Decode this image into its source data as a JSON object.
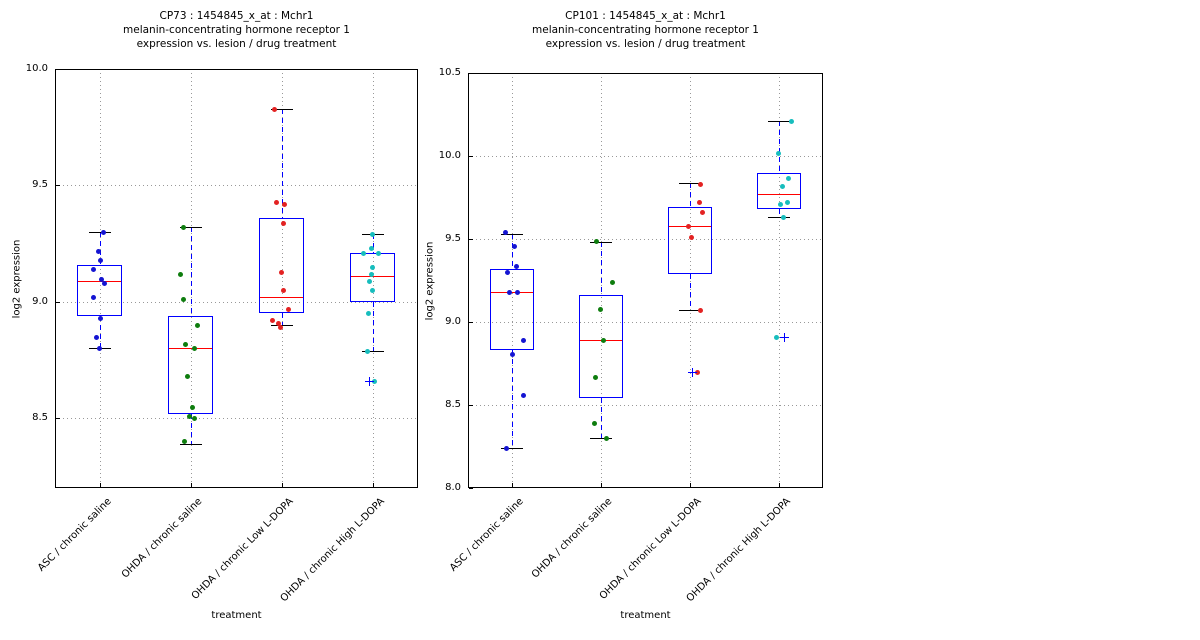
{
  "figure": {
    "background": "#ffffff"
  },
  "palette": {
    "box_edge": "#0000ff",
    "median": "#ff0000",
    "whisker": "#0000ff",
    "cap": "#000000",
    "flier": "#0000ff",
    "grid": "#999999",
    "text": "#000000",
    "axis": "#000000"
  },
  "chart_data": [
    {
      "type": "boxplot-scatter",
      "title_lines": [
        "CP73 : 1454845_x_at : Mchr1",
        "melanin-concentrating hormone receptor 1",
        "expression vs. lesion / drug treatment"
      ],
      "xlabel": "treatment",
      "ylabel": "log2 expression",
      "ylim": [
        8.2,
        10.0
      ],
      "yticks": [
        8.5,
        9.0,
        9.5,
        10.0
      ],
      "ytick_labels": [
        "8.5",
        "9.0",
        "9.5",
        "10.0"
      ],
      "grid": true,
      "categories": [
        "ASC / chronic saline",
        "OHDA / chronic saline",
        "OHDA / chronic Low L-DOPA",
        "OHDA / chronic High L-DOPA"
      ],
      "groups": [
        {
          "name": "ASC / chronic saline",
          "point_color": "#1414d2",
          "box": {
            "whisker_low": 8.8,
            "q1": 8.94,
            "median": 9.09,
            "q3": 9.16,
            "whisker_high": 9.3
          },
          "points": [
            [
              3,
              9.3
            ],
            [
              -2,
              9.22
            ],
            [
              0,
              9.18
            ],
            [
              -7,
              9.14
            ],
            [
              1,
              9.1
            ],
            [
              4,
              9.08
            ],
            [
              -7,
              9.02
            ],
            [
              0,
              8.93
            ],
            [
              -4,
              8.85
            ],
            [
              -1,
              8.8
            ]
          ],
          "fliers": []
        },
        {
          "name": "OHDA / chronic saline",
          "point_color": "#0e7d0e",
          "box": {
            "whisker_low": 8.39,
            "q1": 8.52,
            "median": 8.8,
            "q3": 8.94,
            "whisker_high": 9.32
          },
          "points": [
            [
              -8,
              9.32
            ],
            [
              -11,
              9.12
            ],
            [
              -8,
              9.01
            ],
            [
              6,
              8.9
            ],
            [
              -6,
              8.82
            ],
            [
              3,
              8.8
            ],
            [
              -4,
              8.68
            ],
            [
              1,
              8.55
            ],
            [
              -2,
              8.51
            ],
            [
              3,
              8.5
            ],
            [
              -7,
              8.4
            ]
          ],
          "fliers": []
        },
        {
          "name": "OHDA / chronic Low L-DOPA",
          "point_color": "#e32222",
          "box": {
            "whisker_low": 8.9,
            "q1": 8.95,
            "median": 9.02,
            "q3": 9.36,
            "whisker_high": 9.83
          },
          "points": [
            [
              -8,
              9.83
            ],
            [
              -6,
              9.43
            ],
            [
              2,
              9.42
            ],
            [
              1,
              9.34
            ],
            [
              -1,
              9.13
            ],
            [
              1,
              9.05
            ],
            [
              6,
              8.97
            ],
            [
              -10,
              8.92
            ],
            [
              -4,
              8.91
            ],
            [
              -2,
              8.89
            ]
          ],
          "fliers": []
        },
        {
          "name": "OHDA / chronic High L-DOPA",
          "point_color": "#17bdbd",
          "box": {
            "whisker_low": 8.79,
            "q1": 9.0,
            "median": 9.11,
            "q3": 9.21,
            "whisker_high": 9.29
          },
          "points": [
            [
              -1,
              9.29
            ],
            [
              -2,
              9.23
            ],
            [
              -10,
              9.21
            ],
            [
              5,
              9.21
            ],
            [
              -1,
              9.15
            ],
            [
              -2,
              9.12
            ],
            [
              -4,
              9.09
            ],
            [
              -1,
              9.05
            ],
            [
              -5,
              8.95
            ],
            [
              -6,
              8.79
            ],
            [
              1,
              8.66
            ]
          ],
          "fliers": [
            [
              -4,
              8.66
            ]
          ]
        }
      ]
    },
    {
      "type": "boxplot-scatter",
      "title_lines": [
        "CP101 : 1454845_x_at : Mchr1",
        "melanin-concentrating hormone receptor 1",
        "expression vs. lesion / drug treatment"
      ],
      "xlabel": "treatment",
      "ylabel": "log2 expression",
      "ylim": [
        8.0,
        10.5
      ],
      "yticks": [
        8.0,
        8.5,
        9.0,
        9.5,
        10.0,
        10.5
      ],
      "ytick_labels": [
        "8.0",
        "8.5",
        "9.0",
        "9.5",
        "10.0",
        "10.5"
      ],
      "grid": true,
      "categories": [
        "ASC / chronic saline",
        "OHDA / chronic saline",
        "OHDA / chronic Low L-DOPA",
        "OHDA / chronic High L-DOPA"
      ],
      "groups": [
        {
          "name": "ASC / chronic saline",
          "point_color": "#1414d2",
          "box": {
            "whisker_low": 8.24,
            "q1": 8.83,
            "median": 9.18,
            "q3": 9.32,
            "whisker_high": 9.53
          },
          "points": [
            [
              -7,
              9.54
            ],
            [
              2,
              9.46
            ],
            [
              4,
              9.34
            ],
            [
              -5,
              9.3
            ],
            [
              -3,
              9.18
            ],
            [
              5,
              9.18
            ],
            [
              11,
              8.89
            ],
            [
              0,
              8.81
            ],
            [
              11,
              8.56
            ],
            [
              -6,
              8.24
            ]
          ],
          "fliers": []
        },
        {
          "name": "OHDA / chronic saline",
          "point_color": "#0e7d0e",
          "box": {
            "whisker_low": 8.3,
            "q1": 8.54,
            "median": 8.89,
            "q3": 9.16,
            "whisker_high": 9.48
          },
          "points": [
            [
              -5,
              9.49
            ],
            [
              11,
              9.24
            ],
            [
              -1,
              9.08
            ],
            [
              2,
              8.89
            ],
            [
              -6,
              8.67
            ],
            [
              -7,
              8.39
            ],
            [
              5,
              8.3
            ]
          ],
          "fliers": []
        },
        {
          "name": "OHDA / chronic Low L-DOPA",
          "point_color": "#e32222",
          "box": {
            "whisker_low": 9.07,
            "q1": 9.29,
            "median": 9.58,
            "q3": 9.69,
            "whisker_high": 9.84
          },
          "points": [
            [
              10,
              9.83
            ],
            [
              9,
              9.72
            ],
            [
              12,
              9.66
            ],
            [
              -2,
              9.58
            ],
            [
              1,
              9.51
            ],
            [
              10,
              9.07
            ],
            [
              7,
              8.7
            ]
          ],
          "fliers": [
            [
              2,
              8.7
            ]
          ]
        },
        {
          "name": "OHDA / chronic High L-DOPA",
          "point_color": "#17bdbd",
          "box": {
            "whisker_low": 9.63,
            "q1": 9.68,
            "median": 9.77,
            "q3": 9.9,
            "whisker_high": 10.21
          },
          "points": [
            [
              12,
              10.21
            ],
            [
              -1,
              10.02
            ],
            [
              9,
              9.87
            ],
            [
              3,
              9.82
            ],
            [
              8,
              9.72
            ],
            [
              1,
              9.71
            ],
            [
              4,
              9.63
            ],
            [
              -3,
              8.91
            ]
          ],
          "fliers": [
            [
              5,
              8.91
            ]
          ]
        }
      ]
    }
  ]
}
